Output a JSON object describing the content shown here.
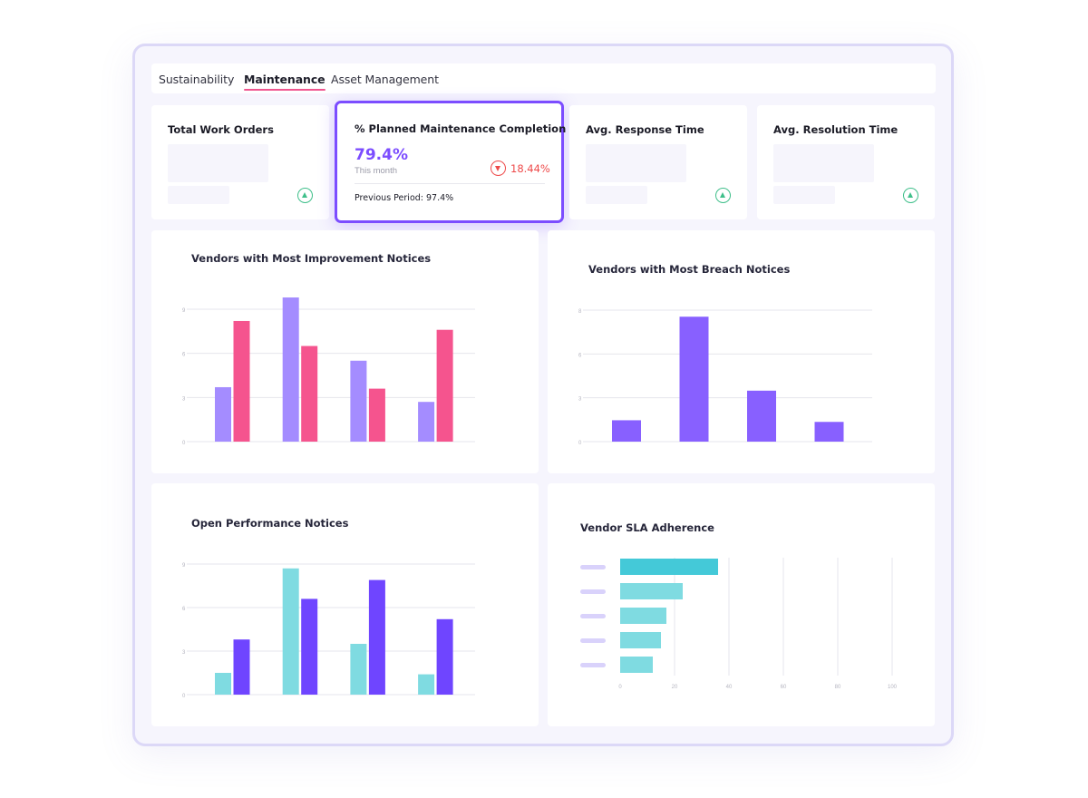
{
  "tabs": [
    {
      "label": "Sustainability",
      "active": false
    },
    {
      "label": "Maintenance",
      "active": true
    },
    {
      "label": "Asset Management",
      "active": false
    }
  ],
  "kpis": [
    {
      "title": "Total Work Orders",
      "trend_icon": "triangle-up-icon"
    },
    {
      "title": "% Planned Maintenance Completion",
      "value": "79.4%",
      "sub": "This month",
      "change": "18.44%",
      "trend_icon": "triangle-down-icon",
      "previous": "Previous Period: 97.4%"
    },
    {
      "title": "Avg. Response Time",
      "trend_icon": "triangle-up-icon"
    },
    {
      "title": "Avg. Resolution Time",
      "trend_icon": "triangle-up-icon"
    }
  ],
  "colors": {
    "accent": "#7c4dff",
    "lavender": "#a48cff",
    "pink": "#f5548e",
    "purple": "#8860ff",
    "cyan": "#7fdbe1",
    "deep_purple": "#6f45ff",
    "teal": "#44c9d8",
    "up": "#3fbf8a",
    "down": "#ee4a4a"
  },
  "charts": {
    "improvement": {
      "title": "Vendors with Most Improvement Notices",
      "chart_data": {
        "type": "bar",
        "yticks": [
          "0",
          "3",
          "6",
          "9"
        ],
        "ylim": [
          0,
          9
        ],
        "categories": [
          "",
          "",
          "",
          ""
        ],
        "series": [
          {
            "color": "#a48cff",
            "values": [
              3.7,
              9.8,
              5.5,
              2.7
            ]
          },
          {
            "color": "#f5548e",
            "values": [
              8.2,
              6.5,
              3.6,
              7.6
            ]
          }
        ]
      }
    },
    "breach": {
      "title": "Vendors with Most Breach Notices",
      "chart_data": {
        "type": "bar",
        "yticks": [
          "0",
          "3",
          "6",
          "8"
        ],
        "ylim": [
          0,
          8
        ],
        "categories": [
          "",
          "",
          "",
          ""
        ],
        "series": [
          {
            "color": "#8860ff",
            "values": [
              1.3,
              7.6,
              3.1,
              1.2
            ]
          }
        ]
      }
    },
    "performance": {
      "title": "Open Performance Notices",
      "chart_data": {
        "type": "bar",
        "yticks": [
          "0",
          "3",
          "6",
          "9"
        ],
        "ylim": [
          0,
          9
        ],
        "categories": [
          "",
          "",
          "",
          ""
        ],
        "series": [
          {
            "color": "#7fdbe1",
            "values": [
              1.5,
              8.7,
              3.5,
              1.4
            ]
          },
          {
            "color": "#6f45ff",
            "values": [
              3.8,
              6.6,
              7.9,
              5.2
            ]
          }
        ]
      }
    },
    "sla": {
      "title": "Vendor SLA Adherence",
      "chart_data": {
        "type": "bar",
        "orientation": "horizontal",
        "xticks": [
          "0",
          "20",
          "40",
          "60",
          "80",
          "100"
        ],
        "xlim": [
          0,
          100
        ],
        "categories": [
          "",
          "",
          "",
          "",
          ""
        ],
        "values": [
          36,
          23,
          17,
          15,
          12
        ],
        "colors": [
          "#44c9d8",
          "#7fdbe1",
          "#7fdbe1",
          "#7fdbe1",
          "#7fdbe1"
        ]
      }
    }
  }
}
